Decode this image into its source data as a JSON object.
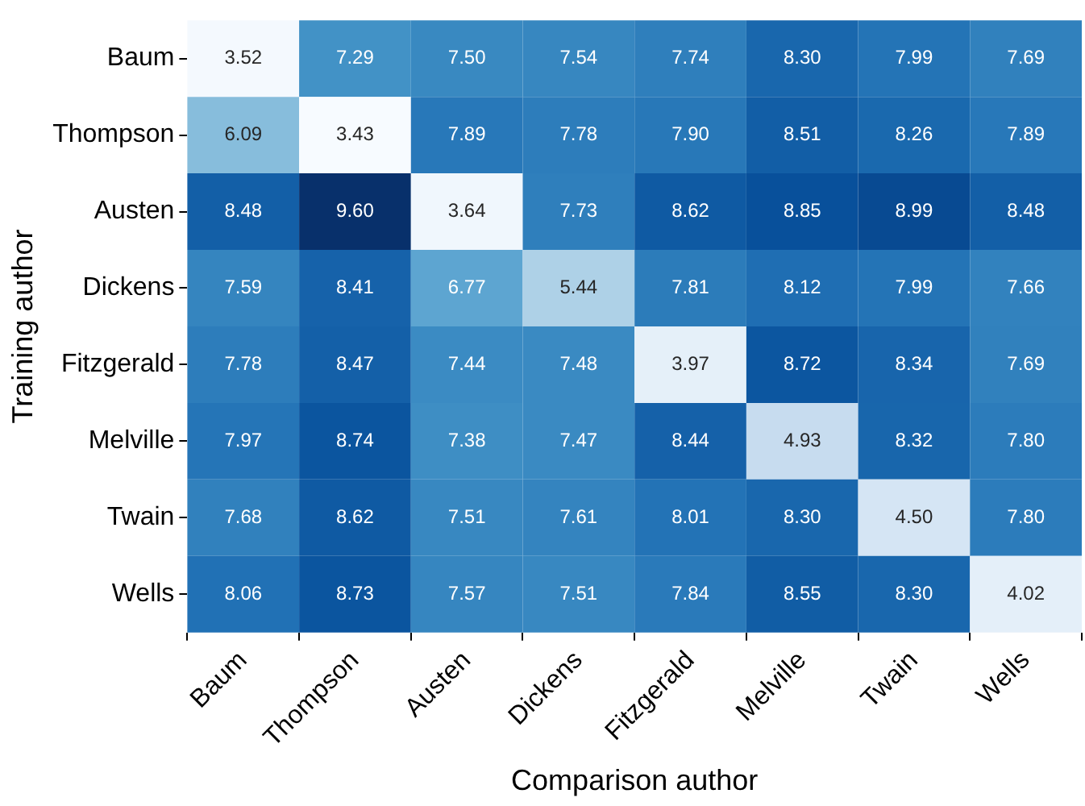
{
  "chart_data": {
    "type": "heatmap",
    "xlabel": "Comparison author",
    "ylabel": "Training author",
    "categories": [
      "Baum",
      "Thompson",
      "Austen",
      "Dickens",
      "Fitzgerald",
      "Melville",
      "Twain",
      "Wells"
    ],
    "y_categories": [
      "Baum",
      "Thompson",
      "Austen",
      "Dickens",
      "Fitzgerald",
      "Melville",
      "Twain",
      "Wells"
    ],
    "cells": [
      [
        3.52,
        7.29,
        7.5,
        7.54,
        7.74,
        8.3,
        7.99,
        7.69
      ],
      [
        6.09,
        3.43,
        7.89,
        7.78,
        7.9,
        8.51,
        8.26,
        7.89
      ],
      [
        8.48,
        9.6,
        3.64,
        7.73,
        8.62,
        8.85,
        8.99,
        8.48
      ],
      [
        7.59,
        8.41,
        6.77,
        5.44,
        7.81,
        8.12,
        7.99,
        7.66
      ],
      [
        7.78,
        8.47,
        7.44,
        7.48,
        3.97,
        8.72,
        8.34,
        7.69
      ],
      [
        7.97,
        8.74,
        7.38,
        7.47,
        8.44,
        4.93,
        8.32,
        7.8
      ],
      [
        7.68,
        8.62,
        7.51,
        7.61,
        8.01,
        8.3,
        4.5,
        7.8
      ],
      [
        8.06,
        8.73,
        7.57,
        7.51,
        7.84,
        8.55,
        8.3,
        4.02
      ]
    ],
    "cell_labels": [
      [
        "3.52",
        "7.29",
        "7.50",
        "7.54",
        "7.74",
        "8.30",
        "7.99",
        "7.69"
      ],
      [
        "6.09",
        "3.43",
        "7.89",
        "7.78",
        "7.90",
        "8.51",
        "8.26",
        "7.89"
      ],
      [
        "8.48",
        "9.60",
        "3.64",
        "7.73",
        "8.62",
        "8.85",
        "8.99",
        "8.48"
      ],
      [
        "7.59",
        "8.41",
        "6.77",
        "5.44",
        "7.81",
        "8.12",
        "7.99",
        "7.66"
      ],
      [
        "7.78",
        "8.47",
        "7.44",
        "7.48",
        "3.97",
        "8.72",
        "8.34",
        "7.69"
      ],
      [
        "7.97",
        "8.74",
        "7.38",
        "7.47",
        "8.44",
        "4.93",
        "8.32",
        "7.80"
      ],
      [
        "7.68",
        "8.62",
        "7.51",
        "7.61",
        "8.01",
        "8.30",
        "4.50",
        "7.80"
      ],
      [
        "8.06",
        "8.73",
        "7.57",
        "7.51",
        "7.84",
        "8.55",
        "8.30",
        "4.02"
      ]
    ]
  }
}
